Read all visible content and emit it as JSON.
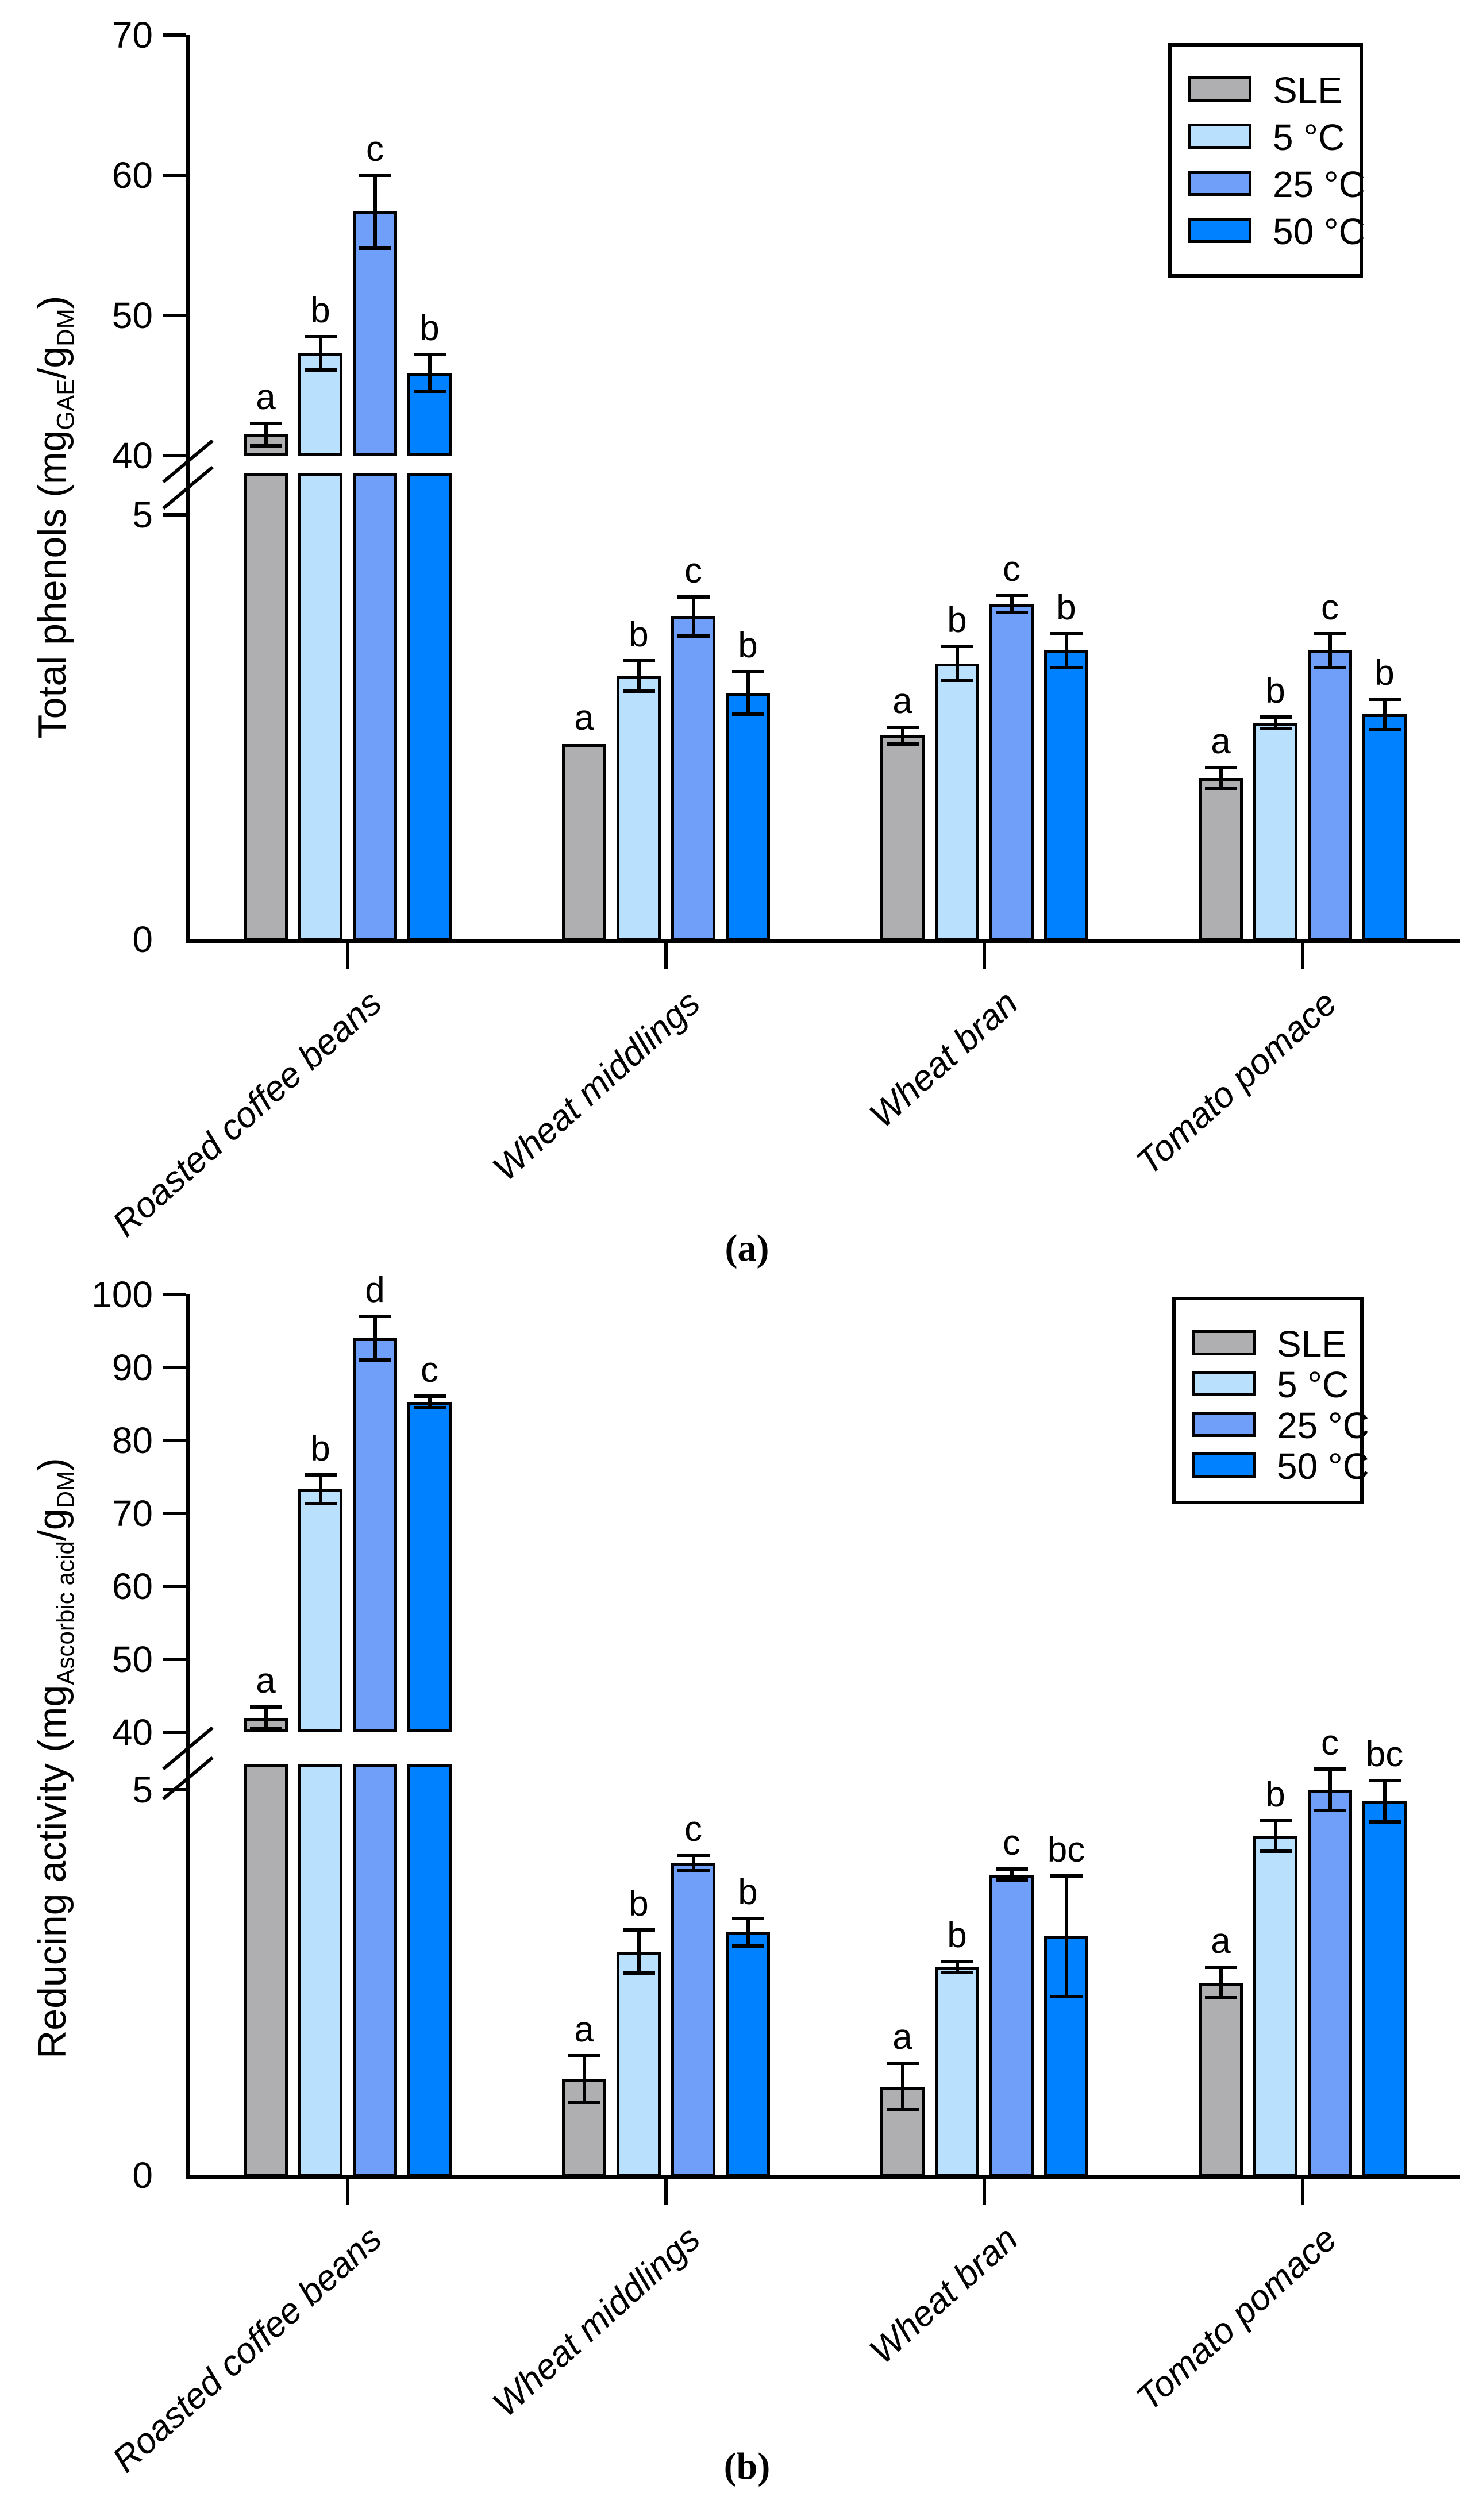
{
  "figure": {
    "background_color": "#ffffff",
    "axis_color": "#000000",
    "captions": {
      "a": "(a)",
      "b": "(b)"
    }
  },
  "legend": {
    "items": [
      {
        "label": "SLE",
        "color": "#AFAFB1"
      },
      {
        "label": "5 °C",
        "color": "#B9E0FC"
      },
      {
        "label": "25 °C",
        "color": "#6F9FF9"
      },
      {
        "label": "50 °C",
        "color": "#0081FF"
      }
    ]
  },
  "chart_data": [
    {
      "id": "a",
      "type": "bar",
      "title": "",
      "caption": "(a)",
      "ylabel_parts": [
        {
          "text": "Total phenols (mg",
          "sub": false
        },
        {
          "text": "GAE",
          "sub": true
        },
        {
          "text": "/g",
          "sub": false
        },
        {
          "text": "DM",
          "sub": true
        },
        {
          "text": ")",
          "sub": false
        }
      ],
      "categories": [
        "Roasted coffee beans",
        "Wheat middlings",
        "Wheat bran",
        "Tomato pomace"
      ],
      "axis_break": true,
      "upper_axis": {
        "range": [
          40,
          70
        ],
        "ticks": [
          40,
          50,
          60,
          70
        ]
      },
      "lower_axis": {
        "range": [
          0,
          5
        ],
        "ticks": [
          0,
          5
        ]
      },
      "legend_position": "top-right",
      "series": [
        {
          "name": "SLE",
          "color": "#AFAFB1",
          "values": [
            41.5,
            2.3,
            2.4,
            1.9
          ],
          "errors": [
            0.8,
            0,
            0.1,
            0.12
          ],
          "letters": [
            "a",
            "a",
            "a",
            "a"
          ]
        },
        {
          "name": "5 °C",
          "color": "#B9E0FC",
          "values": [
            47.3,
            3.1,
            3.25,
            2.55
          ],
          "errors": [
            1.2,
            0.18,
            0.2,
            0.07
          ],
          "letters": [
            "b",
            "b",
            "b",
            "b"
          ]
        },
        {
          "name": "25 °C",
          "color": "#6F9FF9",
          "values": [
            57.4,
            3.8,
            3.95,
            3.4
          ],
          "errors": [
            2.6,
            0.23,
            0.1,
            0.2
          ],
          "letters": [
            "c",
            "c",
            "c",
            "c"
          ]
        },
        {
          "name": "50 °C",
          "color": "#0081FF",
          "values": [
            45.9,
            2.9,
            3.4,
            2.65
          ],
          "errors": [
            1.3,
            0.25,
            0.2,
            0.18
          ],
          "letters": [
            "b",
            "b",
            "b",
            "b"
          ]
        }
      ]
    },
    {
      "id": "b",
      "type": "bar",
      "title": "",
      "caption": "(b)",
      "ylabel_parts": [
        {
          "text": "Reducing activity (mg",
          "sub": false
        },
        {
          "text": "Ascorbic acid",
          "sub": true
        },
        {
          "text": "/g",
          "sub": false
        },
        {
          "text": "DM",
          "sub": true
        },
        {
          "text": ")",
          "sub": false
        }
      ],
      "categories": [
        "Roasted coffee beans",
        "Wheat middlings",
        "Wheat bran",
        "Tomato pomace"
      ],
      "axis_break": true,
      "upper_axis": {
        "range": [
          40,
          100
        ],
        "ticks": [
          40,
          50,
          60,
          70,
          80,
          90,
          100
        ]
      },
      "lower_axis": {
        "range": [
          0,
          5
        ],
        "ticks": [
          0,
          5
        ]
      },
      "legend_position": "top-right",
      "series": [
        {
          "name": "SLE",
          "color": "#AFAFB1",
          "values": [
            42,
            1.25,
            1.15,
            2.5
          ],
          "errors": [
            1.5,
            0.3,
            0.3,
            0.2
          ],
          "letters": [
            "a",
            "a",
            "a",
            "a"
          ]
        },
        {
          "name": "5 °C",
          "color": "#B9E0FC",
          "values": [
            73.3,
            2.9,
            2.7,
            4.4
          ],
          "errors": [
            2.0,
            0.28,
            0.07,
            0.2
          ],
          "letters": [
            "b",
            "b",
            "b",
            "b"
          ]
        },
        {
          "name": "25 °C",
          "color": "#6F9FF9",
          "values": [
            94,
            4.05,
            3.9,
            5.0
          ],
          "errors": [
            3.0,
            0.1,
            0.07,
            0.27
          ],
          "letters": [
            "d",
            "c",
            "c",
            "c"
          ]
        },
        {
          "name": "50 °C",
          "color": "#0081FF",
          "values": [
            85.3,
            3.15,
            3.1,
            4.85
          ],
          "errors": [
            0.8,
            0.18,
            0.78,
            0.27
          ],
          "letters": [
            "c",
            "b",
            "bc",
            "bc"
          ]
        }
      ]
    }
  ]
}
